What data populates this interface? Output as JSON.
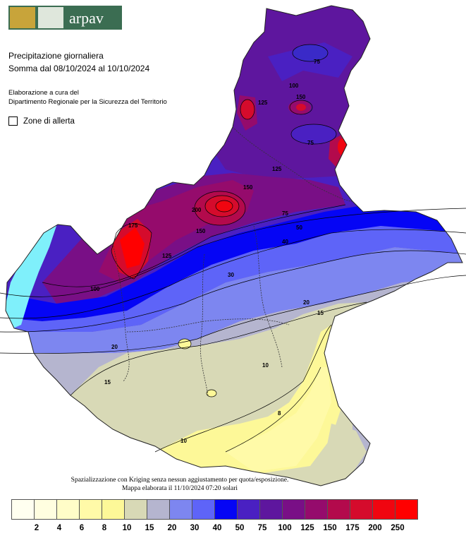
{
  "header": {
    "brand": "arpav",
    "title_line1": "Precipitazione giornaliera",
    "title_line2": "Somma dal 08/10/2024 al 10/10/2024",
    "credit_line1": "Elaborazione a cura del",
    "credit_line2": "Dipartimento Regionale per la Sicurezza del Territorio",
    "zones_label": "Zone di allerta"
  },
  "footnote": {
    "line1": "Spazializzazione con Kriging senza nessun aggiustamento per quota/esposizione.",
    "line2": "Mappa elaborata il 11/10/2024 07:20 solari"
  },
  "legend": {
    "labels": [
      "2",
      "4",
      "6",
      "8",
      "10",
      "15",
      "20",
      "30",
      "40",
      "50",
      "75",
      "100",
      "125",
      "150",
      "175",
      "200",
      "250"
    ],
    "colors": [
      "#fffff0",
      "#fffee0",
      "#fffdc8",
      "#fffaa8",
      "#fdf898",
      "#d8d9b6",
      "#b5b5cf",
      "#7d86f0",
      "#5e64f8",
      "#0505f5",
      "#4a20c2",
      "#5e169e",
      "#790f86",
      "#950b6c",
      "#b30a4c",
      "#d50b2c",
      "#f00510",
      "#ff0000"
    ]
  },
  "contour_labels": {
    "alps_north": "75",
    "belluno_a": "100",
    "belluno_b": "125",
    "cadore": "150",
    "east_ridge": "75",
    "central_a": "125",
    "central_b": "150",
    "central_c": "200",
    "west_a": "175",
    "west_b": "150",
    "west_c": "125",
    "west_d": "100",
    "band_a": "75",
    "band_b": "50",
    "band_c": "40",
    "band_d": "30",
    "band_e": "20",
    "plain_a": "15",
    "plain_b": "10",
    "plain_c": "8",
    "coast": "10",
    "sw_a": "20",
    "sw_b": "15"
  }
}
